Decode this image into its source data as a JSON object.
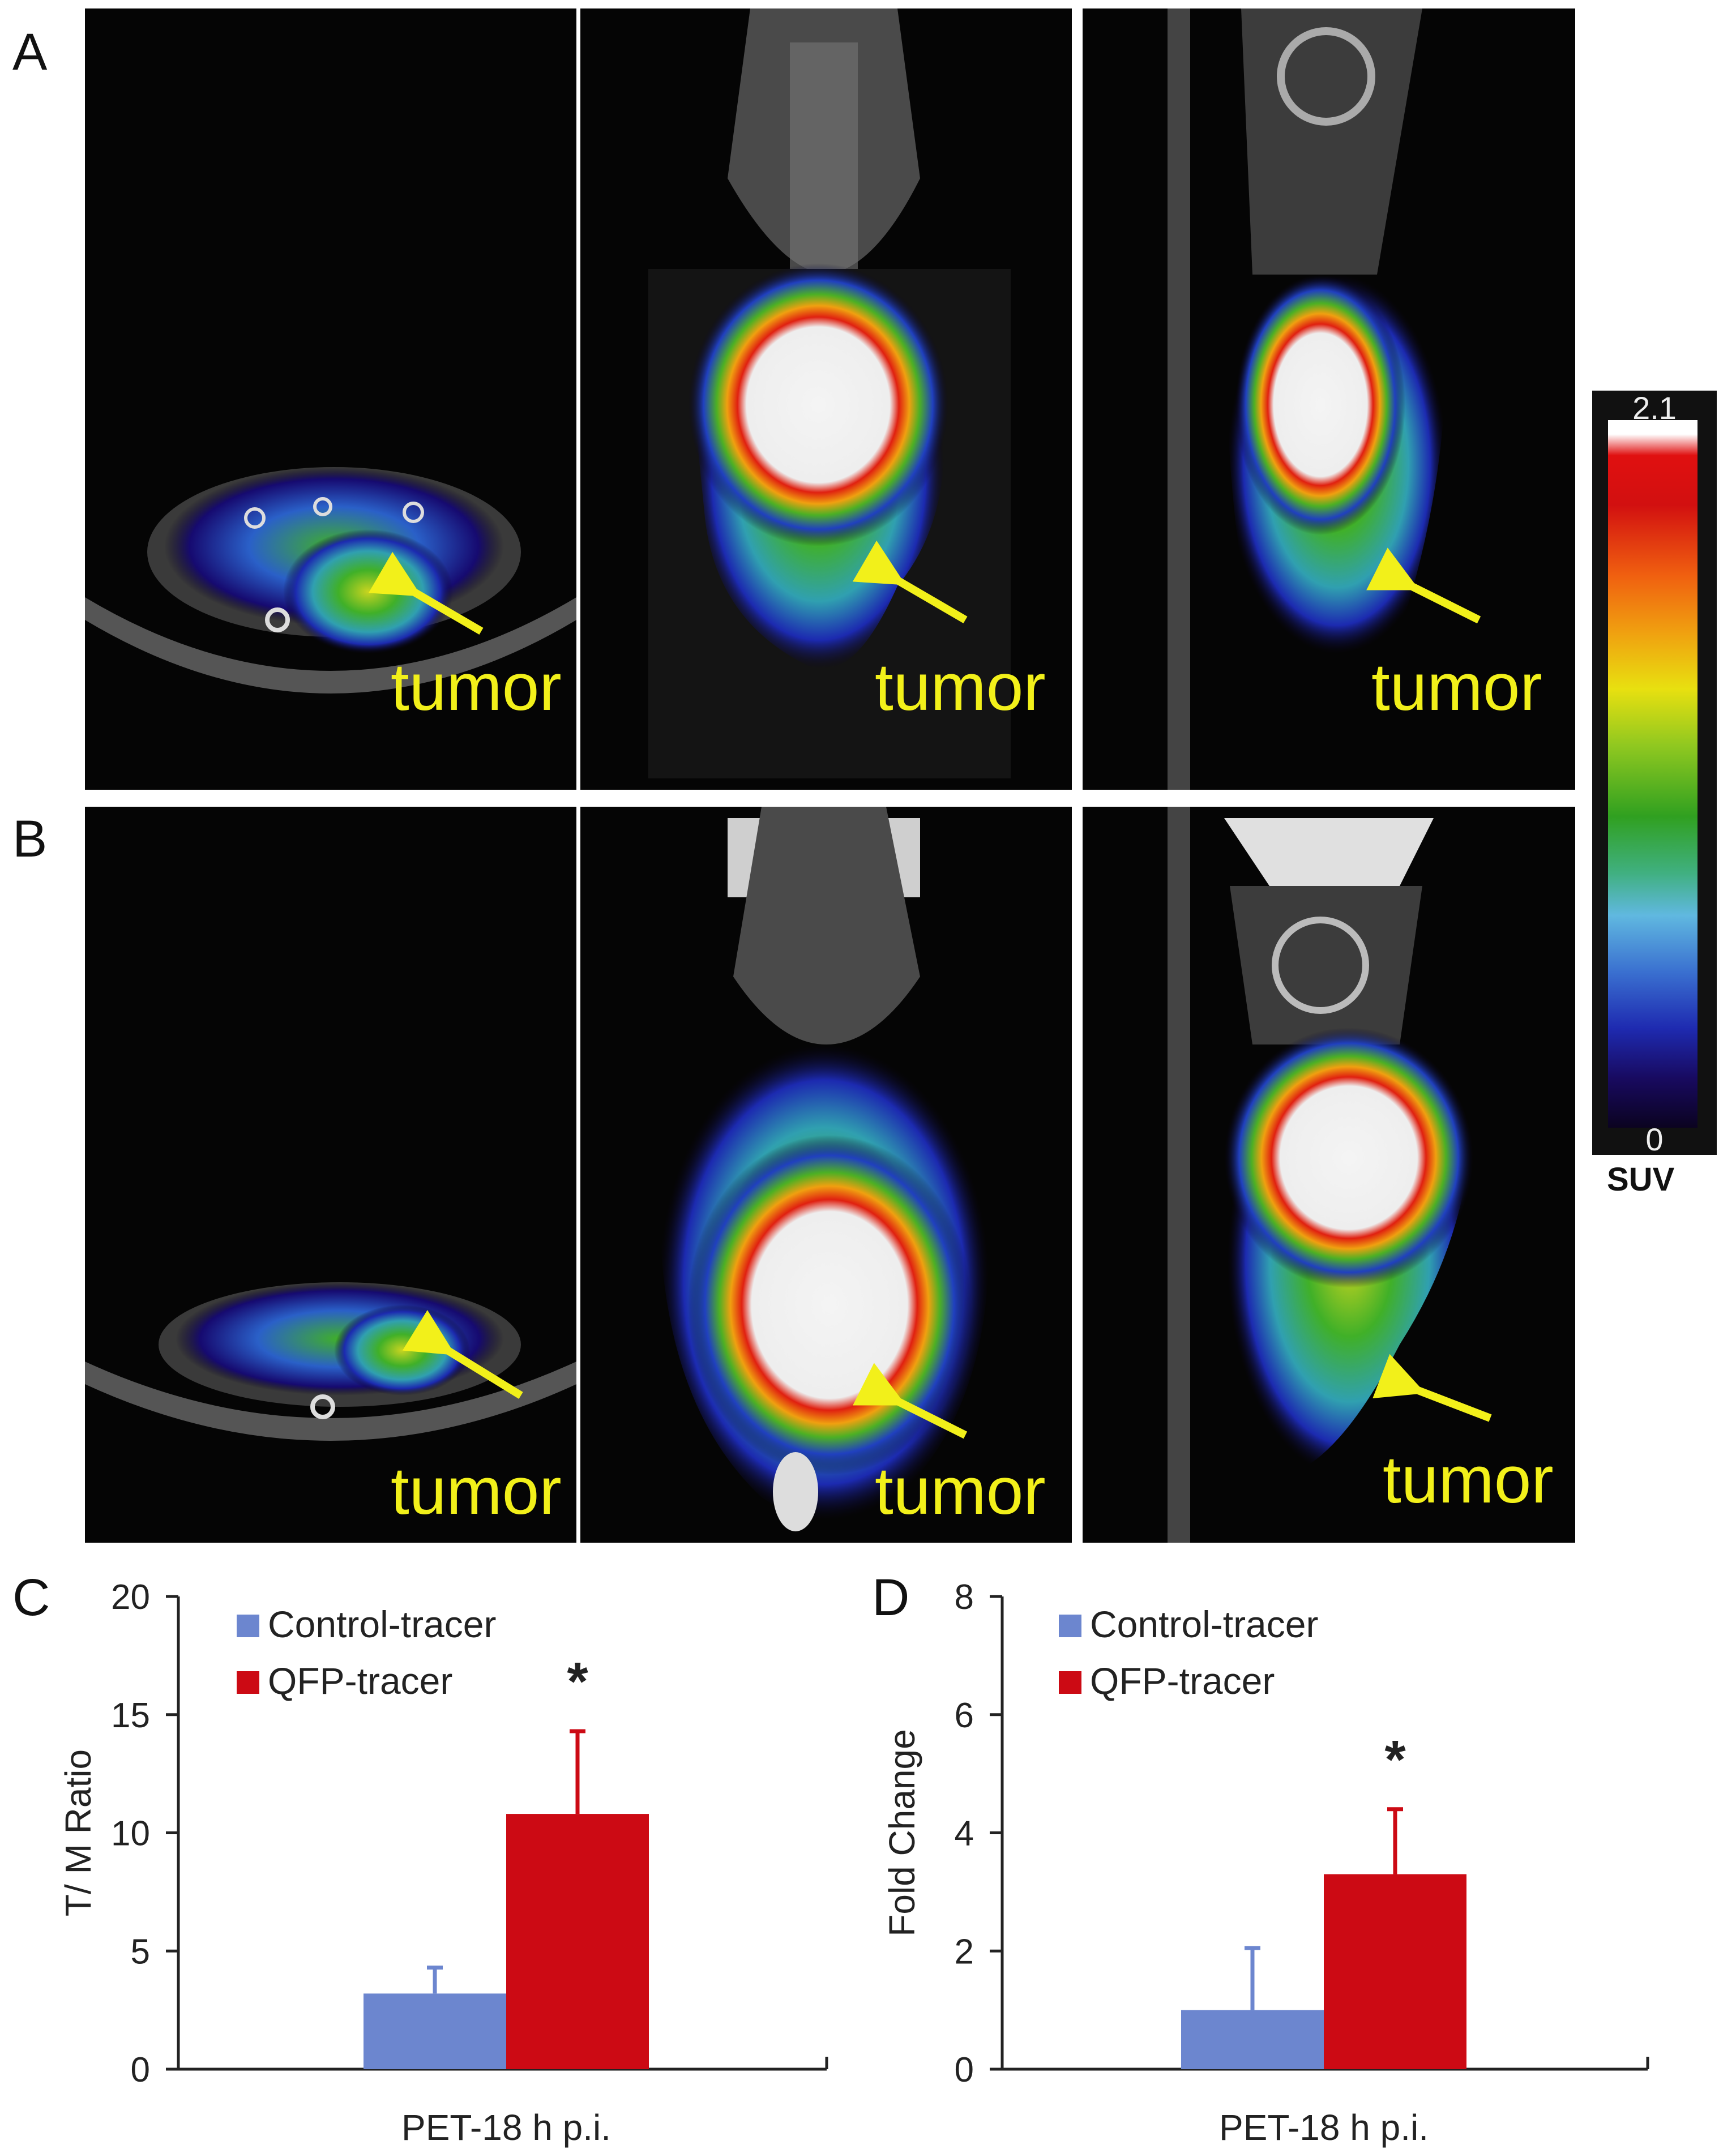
{
  "panel_letters": [
    "A",
    "B",
    "C",
    "D"
  ],
  "tumor_label": "tumor",
  "colorbar": {
    "max_label": "2.1",
    "min_label": "0",
    "unit_label": "SUV"
  },
  "colors": {
    "control": "#6c86cf",
    "qfp": "#cc0a14",
    "tumor_text": "#f2f01a"
  },
  "chart_data": [
    {
      "type": "bar",
      "panel": "C",
      "title": "",
      "xlabel": "PET-18 h p.i.",
      "ylabel": "T/ M Ratio",
      "ylim": [
        0,
        20
      ],
      "yticks": [
        0,
        5,
        10,
        15,
        20
      ],
      "categories": [
        "PET-18 h p.i."
      ],
      "series": [
        {
          "name": "Control-tracer",
          "values": [
            3.2
          ],
          "error": [
            1.1
          ],
          "color": "#6c86cf"
        },
        {
          "name": "QFP-tracer",
          "values": [
            10.8
          ],
          "error": [
            3.5
          ],
          "color": "#cc0a14"
        }
      ],
      "significance": "*",
      "legend_position": "top-left"
    },
    {
      "type": "bar",
      "panel": "D",
      "title": "",
      "xlabel": "PET-18 h p.i.",
      "ylabel": "Fold Change",
      "ylim": [
        0,
        8
      ],
      "yticks": [
        0,
        2,
        4,
        6,
        8
      ],
      "categories": [
        "PET-18 h p.i."
      ],
      "series": [
        {
          "name": "Control-tracer",
          "values": [
            1.0
          ],
          "error": [
            1.05
          ],
          "color": "#6c86cf"
        },
        {
          "name": "QFP-tracer",
          "values": [
            3.3
          ],
          "error": [
            1.1
          ],
          "color": "#cc0a14"
        }
      ],
      "significance": "*",
      "legend_position": "top-left"
    }
  ]
}
